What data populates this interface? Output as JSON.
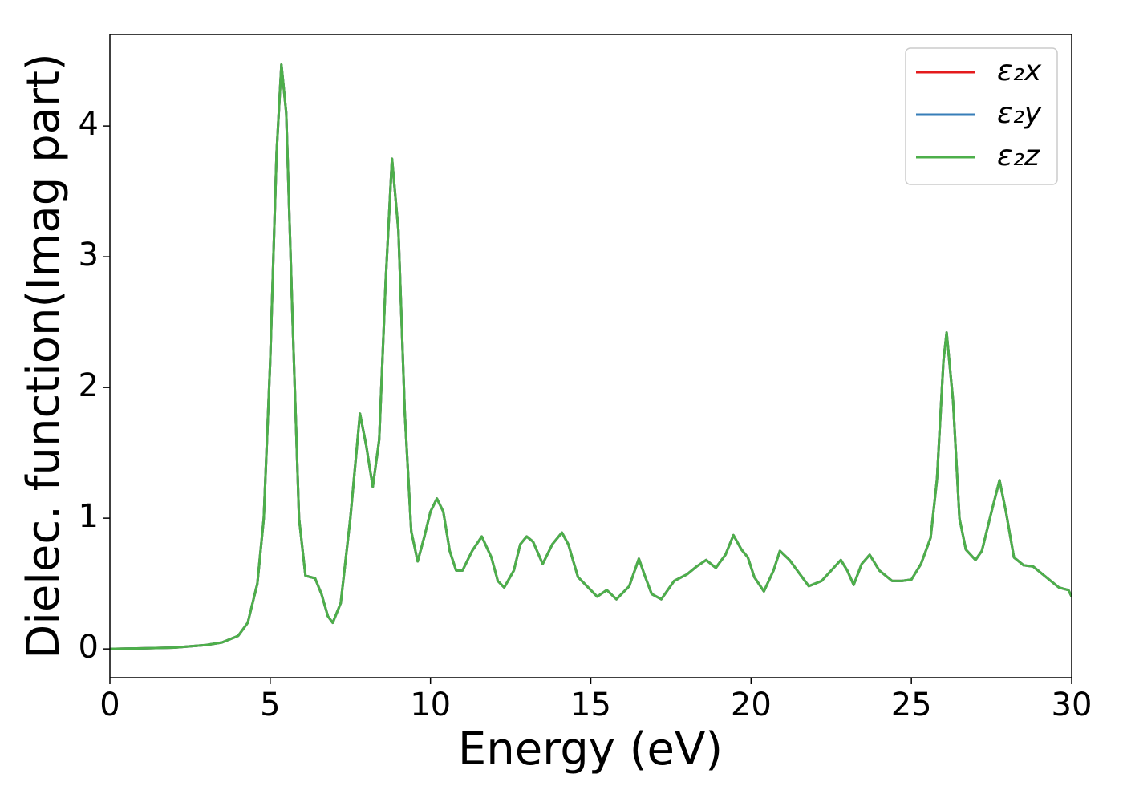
{
  "chart_data": {
    "type": "line",
    "xlabel": "Energy (eV)",
    "ylabel": "Dielec. function(Imag part)",
    "xlim": [
      0,
      30
    ],
    "ylim": [
      -0.22,
      4.7
    ],
    "xticks": [
      0,
      5,
      10,
      15,
      20,
      25,
      30
    ],
    "yticks": [
      0,
      1,
      2,
      3,
      4
    ],
    "legend": "upper right",
    "grid": false,
    "x": [
      0,
      1,
      2,
      3,
      3.5,
      4,
      4.3,
      4.6,
      4.8,
      5.0,
      5.2,
      5.35,
      5.5,
      5.7,
      5.9,
      6.1,
      6.4,
      6.6,
      6.8,
      6.95,
      7.2,
      7.5,
      7.8,
      8.0,
      8.2,
      8.4,
      8.6,
      8.8,
      9.0,
      9.2,
      9.4,
      9.6,
      9.8,
      10.0,
      10.2,
      10.4,
      10.6,
      10.8,
      11.0,
      11.3,
      11.6,
      11.9,
      12.1,
      12.3,
      12.6,
      12.8,
      13.0,
      13.2,
      13.5,
      13.8,
      14.1,
      14.3,
      14.6,
      15.0,
      15.2,
      15.5,
      15.8,
      16.2,
      16.5,
      16.7,
      16.9,
      17.2,
      17.6,
      18.0,
      18.3,
      18.6,
      18.9,
      19.2,
      19.45,
      19.7,
      19.9,
      20.1,
      20.4,
      20.7,
      20.9,
      21.2,
      21.5,
      21.8,
      22.2,
      22.5,
      22.8,
      23.0,
      23.2,
      23.45,
      23.7,
      24.0,
      24.4,
      24.7,
      25.0,
      25.3,
      25.6,
      25.8,
      26.0,
      26.1,
      26.3,
      26.5,
      26.7,
      27.0,
      27.2,
      27.5,
      27.75,
      27.95,
      28.2,
      28.5,
      28.8,
      29.2,
      29.6,
      29.9,
      30.0
    ],
    "series": [
      {
        "name": "ε₂x",
        "color": "#e41a1c",
        "values": [
          0,
          0.005,
          0.01,
          0.03,
          0.05,
          0.1,
          0.2,
          0.5,
          1.0,
          2.2,
          3.8,
          4.47,
          4.1,
          2.5,
          1.0,
          0.56,
          0.54,
          0.42,
          0.25,
          0.2,
          0.35,
          1.0,
          1.8,
          1.55,
          1.24,
          1.6,
          2.8,
          3.75,
          3.2,
          1.8,
          0.9,
          0.67,
          0.85,
          1.05,
          1.15,
          1.05,
          0.75,
          0.6,
          0.6,
          0.75,
          0.86,
          0.7,
          0.52,
          0.47,
          0.6,
          0.8,
          0.86,
          0.82,
          0.65,
          0.8,
          0.89,
          0.8,
          0.55,
          0.45,
          0.4,
          0.45,
          0.38,
          0.48,
          0.69,
          0.55,
          0.42,
          0.38,
          0.52,
          0.57,
          0.63,
          0.68,
          0.62,
          0.72,
          0.87,
          0.76,
          0.7,
          0.55,
          0.44,
          0.6,
          0.75,
          0.68,
          0.58,
          0.48,
          0.52,
          0.6,
          0.68,
          0.6,
          0.49,
          0.65,
          0.72,
          0.6,
          0.52,
          0.52,
          0.53,
          0.65,
          0.85,
          1.3,
          2.2,
          2.42,
          1.9,
          1.0,
          0.76,
          0.68,
          0.75,
          1.05,
          1.29,
          1.05,
          0.7,
          0.64,
          0.63,
          0.55,
          0.47,
          0.45,
          0.4
        ]
      },
      {
        "name": "ε₂y",
        "color": "#377eb8",
        "values": [
          0,
          0.005,
          0.01,
          0.03,
          0.05,
          0.1,
          0.2,
          0.5,
          1.0,
          2.2,
          3.8,
          4.47,
          4.1,
          2.5,
          1.0,
          0.56,
          0.54,
          0.42,
          0.25,
          0.2,
          0.35,
          1.0,
          1.8,
          1.55,
          1.24,
          1.6,
          2.8,
          3.75,
          3.2,
          1.8,
          0.9,
          0.67,
          0.85,
          1.05,
          1.15,
          1.05,
          0.75,
          0.6,
          0.6,
          0.75,
          0.86,
          0.7,
          0.52,
          0.47,
          0.6,
          0.8,
          0.86,
          0.82,
          0.65,
          0.8,
          0.89,
          0.8,
          0.55,
          0.45,
          0.4,
          0.45,
          0.38,
          0.48,
          0.69,
          0.55,
          0.42,
          0.38,
          0.52,
          0.57,
          0.63,
          0.68,
          0.62,
          0.72,
          0.87,
          0.76,
          0.7,
          0.55,
          0.44,
          0.6,
          0.75,
          0.68,
          0.58,
          0.48,
          0.52,
          0.6,
          0.68,
          0.6,
          0.49,
          0.65,
          0.72,
          0.6,
          0.52,
          0.52,
          0.53,
          0.65,
          0.85,
          1.3,
          2.2,
          2.42,
          1.9,
          1.0,
          0.76,
          0.68,
          0.75,
          1.05,
          1.29,
          1.05,
          0.7,
          0.64,
          0.63,
          0.55,
          0.47,
          0.45,
          0.4
        ]
      },
      {
        "name": "ε₂z",
        "color": "#4daf4a",
        "values": [
          0,
          0.005,
          0.01,
          0.03,
          0.05,
          0.1,
          0.2,
          0.5,
          1.0,
          2.2,
          3.8,
          4.47,
          4.1,
          2.5,
          1.0,
          0.56,
          0.54,
          0.42,
          0.25,
          0.2,
          0.35,
          1.0,
          1.8,
          1.55,
          1.24,
          1.6,
          2.8,
          3.75,
          3.2,
          1.8,
          0.9,
          0.67,
          0.85,
          1.05,
          1.15,
          1.05,
          0.75,
          0.6,
          0.6,
          0.75,
          0.86,
          0.7,
          0.52,
          0.47,
          0.6,
          0.8,
          0.86,
          0.82,
          0.65,
          0.8,
          0.89,
          0.8,
          0.55,
          0.45,
          0.4,
          0.45,
          0.38,
          0.48,
          0.69,
          0.55,
          0.42,
          0.38,
          0.52,
          0.57,
          0.63,
          0.68,
          0.62,
          0.72,
          0.87,
          0.76,
          0.7,
          0.55,
          0.44,
          0.6,
          0.75,
          0.68,
          0.58,
          0.48,
          0.52,
          0.6,
          0.68,
          0.6,
          0.49,
          0.65,
          0.72,
          0.6,
          0.52,
          0.52,
          0.53,
          0.65,
          0.85,
          1.3,
          2.2,
          2.42,
          1.9,
          1.0,
          0.76,
          0.68,
          0.75,
          1.05,
          1.29,
          1.05,
          0.7,
          0.64,
          0.63,
          0.55,
          0.47,
          0.45,
          0.4
        ]
      }
    ]
  }
}
